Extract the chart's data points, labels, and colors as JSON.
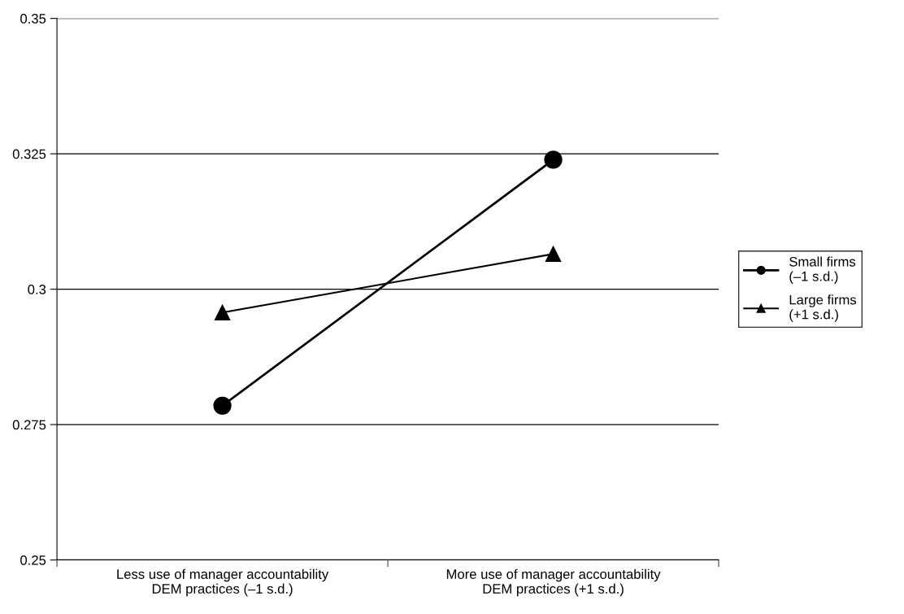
{
  "chart_data": {
    "type": "line",
    "categories": [
      "Less use of manager accountability\nDEM practices (–1 s.d.)",
      "More use of manager accountability\nDEM practices (+1 s.d.)"
    ],
    "series": [
      {
        "name": "Small firms\n(–1 s.d.)",
        "color": "#000000",
        "values": [
          0.2785,
          0.3239
        ],
        "marker": "circle"
      },
      {
        "name": "Large firms\n(+1 s.d.)",
        "color": "#000000",
        "values": [
          0.2957,
          0.3065
        ],
        "marker": "triangle"
      }
    ],
    "ylim": [
      0.25,
      0.35
    ],
    "yticks": [
      0.25,
      0.275,
      0.3,
      0.325,
      0.35
    ],
    "grid": "y",
    "legend": "right",
    "line_style": "solid"
  }
}
